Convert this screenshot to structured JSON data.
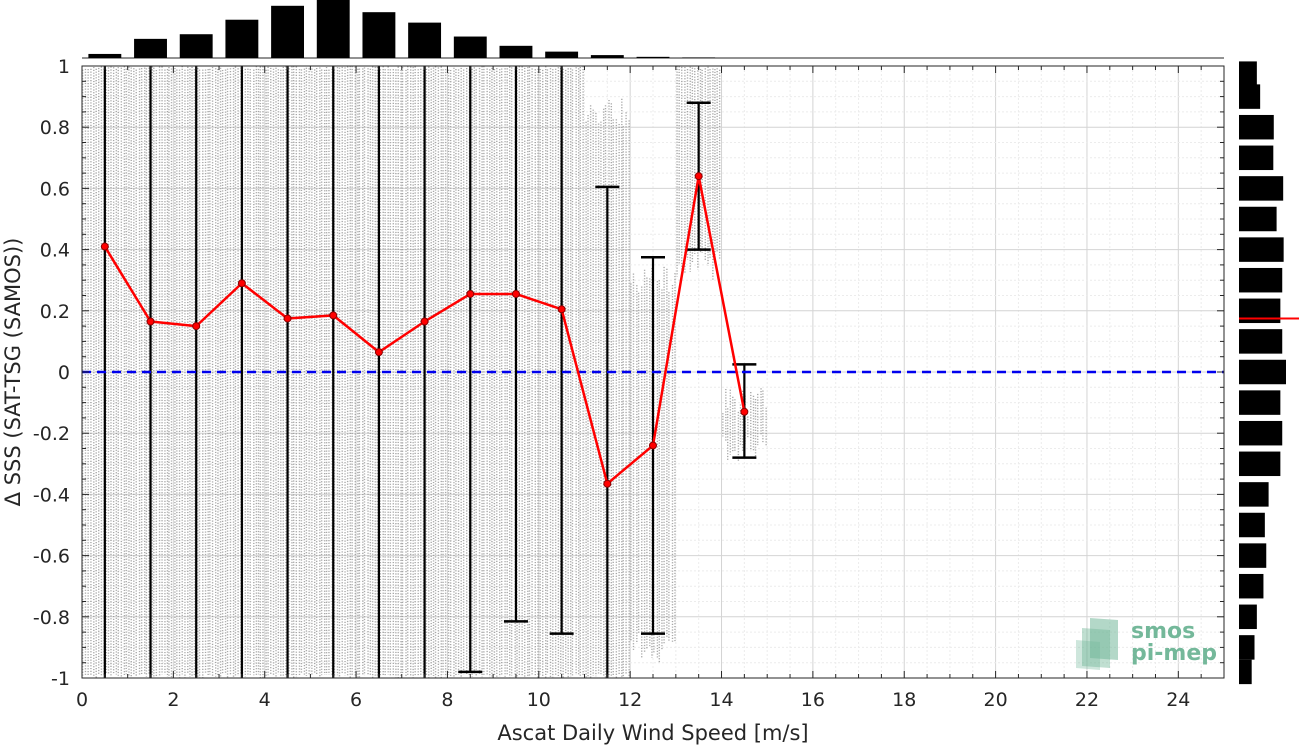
{
  "chart_data": {
    "type": "line",
    "xlabel": "Ascat Daily Wind Speed [m/s]",
    "ylabel": "Δ SSS (SAT-TSG (SAMOS))",
    "xlim": [
      0,
      25
    ],
    "ylim": [
      -1,
      1
    ],
    "x_ticks": [
      "0",
      "2",
      "4",
      "6",
      "8",
      "10",
      "12",
      "14",
      "16",
      "18",
      "20",
      "22",
      "24"
    ],
    "y_ticks": [
      "-1",
      "-0.8",
      "-0.6",
      "-0.4",
      "-0.2",
      "0",
      "0.2",
      "0.4",
      "0.6",
      "0.8",
      "1"
    ],
    "grid": true,
    "series": [
      {
        "name": "",
        "color": "#ff0000",
        "x": [
          0.5,
          1.5,
          2.5,
          3.5,
          4.5,
          5.5,
          6.5,
          7.5,
          8.5,
          9.5,
          10.5,
          11.5,
          12.5,
          13.5,
          14.5
        ],
        "y": [
          0.41,
          0.165,
          0.15,
          0.29,
          0.175,
          0.185,
          0.065,
          0.165,
          0.255,
          0.255,
          0.205,
          -0.365,
          -0.24,
          0.64,
          -0.13
        ],
        "error_low": [
          -1.0,
          -1.0,
          -1.0,
          -1.0,
          -1.0,
          -1.0,
          -1.0,
          -1.0,
          -0.98,
          -0.815,
          -0.855,
          -1.0,
          -0.855,
          0.4,
          -0.28
        ],
        "error_high": [
          1.0,
          1.0,
          1.0,
          1.0,
          1.0,
          1.0,
          1.0,
          1.0,
          1.0,
          1.0,
          1.0,
          0.605,
          0.375,
          0.88,
          0.025
        ]
      }
    ],
    "reference_line": {
      "y": 0,
      "color": "#0000ee",
      "style": "dashed"
    },
    "scatter_color": "#8c8c8c",
    "scatter_columns": [
      {
        "x": 0.5,
        "min": -1,
        "max": 1
      },
      {
        "x": 1.5,
        "min": -1,
        "max": 1
      },
      {
        "x": 2.5,
        "min": -1,
        "max": 1
      },
      {
        "x": 3.5,
        "min": -1,
        "max": 1
      },
      {
        "x": 4.5,
        "min": -1,
        "max": 1
      },
      {
        "x": 5.5,
        "min": -1,
        "max": 1
      },
      {
        "x": 6.5,
        "min": -1,
        "max": 1
      },
      {
        "x": 7.5,
        "min": -1,
        "max": 1
      },
      {
        "x": 8.5,
        "min": -1,
        "max": 1
      },
      {
        "x": 9.5,
        "min": -1,
        "max": 1
      },
      {
        "x": 10.5,
        "min": -1,
        "max": 1
      },
      {
        "x": 11.5,
        "min": -1,
        "max": 0.9
      },
      {
        "x": 12.5,
        "min": -0.95,
        "max": 0.35
      },
      {
        "x": 13.5,
        "min": 0.3,
        "max": 1
      },
      {
        "x": 14.5,
        "min": -0.3,
        "max": -0.05
      }
    ],
    "top_histogram": {
      "bins_x": [
        0.5,
        1.5,
        2.5,
        3.5,
        4.5,
        5.5,
        6.5,
        7.5,
        8.5,
        9.5,
        10.5,
        11.5,
        12.5,
        13.5
      ],
      "heights": [
        0.07,
        0.33,
        0.41,
        0.66,
        0.9,
        1.0,
        0.79,
        0.61,
        0.37,
        0.21,
        0.11,
        0.05,
        0.02,
        0.01
      ]
    },
    "right_histogram": {
      "bins_y": [
        0.975,
        0.9,
        0.8,
        0.7,
        0.6,
        0.5,
        0.4,
        0.3,
        0.2,
        0.1,
        0.0,
        -0.1,
        -0.2,
        -0.3,
        -0.4,
        -0.5,
        -0.6,
        -0.7,
        -0.8,
        -0.9,
        -0.98
      ],
      "heights": [
        0.38,
        0.45,
        0.74,
        0.73,
        0.94,
        0.8,
        0.95,
        0.92,
        0.88,
        0.92,
        1.0,
        0.88,
        0.92,
        0.88,
        0.63,
        0.55,
        0.58,
        0.52,
        0.38,
        0.33,
        0.27
      ],
      "mean_line_y": 0.175,
      "mean_line_color": "#ff0000"
    }
  },
  "logo": {
    "line1": "smos",
    "line2": "pi-mep"
  }
}
